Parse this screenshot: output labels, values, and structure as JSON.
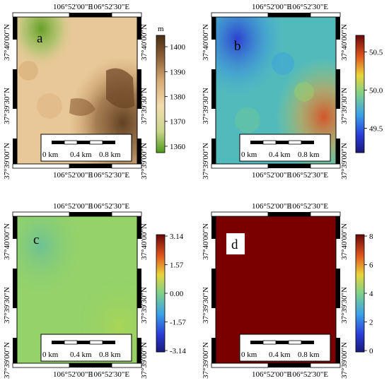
{
  "figure": {
    "lon_ticks": [
      "106°52'00\"E",
      "106°52'30\"E"
    ],
    "lat_ticks": [
      "37°40'00\"N",
      "37°39'30\"N",
      "37°39'00\"N"
    ],
    "scale_bar": [
      "0 km",
      "0.4 km",
      "0.8 km"
    ],
    "panels": [
      {
        "label": "a",
        "colormap": "terrain",
        "colorbar_unit": "m",
        "colorbar_ticks": [
          "1400",
          "1390",
          "1380",
          "1370",
          "1360"
        ],
        "colorbar_values": [
          1400,
          1390,
          1380,
          1370,
          1360
        ],
        "range": [
          1358,
          1404
        ]
      },
      {
        "label": "b",
        "colormap": "jet",
        "colorbar_unit": "",
        "colorbar_ticks": [
          "50.5",
          "50.0",
          "49.5"
        ],
        "colorbar_values": [
          50.5,
          50.0,
          49.5
        ],
        "range": [
          49.2,
          50.7
        ]
      },
      {
        "label": "c",
        "colormap": "jet-phase",
        "colorbar_unit": "",
        "colorbar_ticks": [
          "3.14",
          "1.57",
          "0.00",
          "-1.57",
          "-3.14"
        ],
        "colorbar_values": [
          3.14,
          1.57,
          0.0,
          -1.57,
          -3.14
        ],
        "range": [
          -3.14,
          3.14
        ]
      },
      {
        "label": "d",
        "colormap": "jet",
        "colorbar_unit": "",
        "colorbar_ticks": [
          "8",
          "6",
          "4",
          "2",
          "0"
        ],
        "colorbar_values": [
          8,
          6,
          4,
          2,
          0
        ],
        "range": [
          0,
          8
        ]
      }
    ],
    "colors": {
      "terrain_low": "#5a9a1e",
      "terrain_mid": "#e8c48c",
      "terrain_high": "#5a3a1e",
      "phase_field": "#8fd06a",
      "uniform_field": "#7a0000"
    }
  }
}
